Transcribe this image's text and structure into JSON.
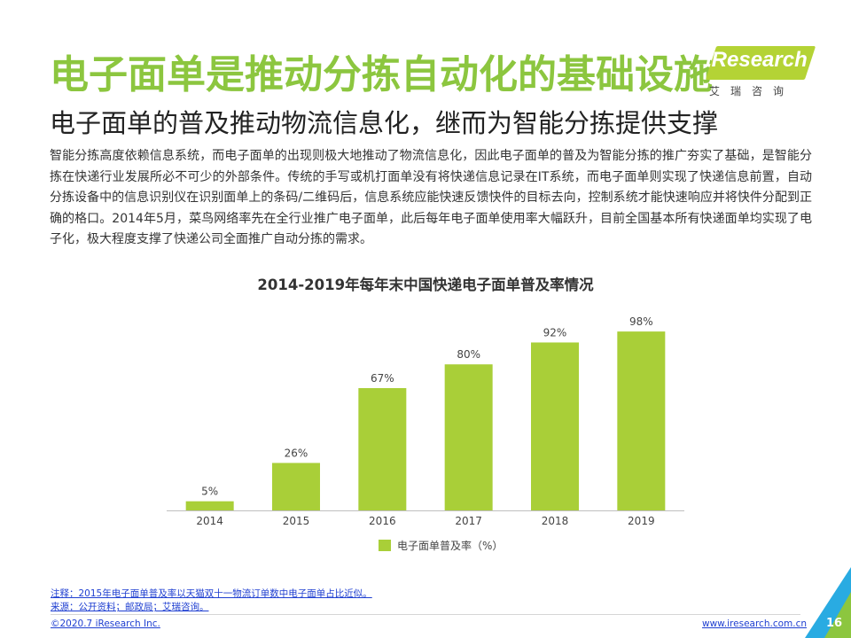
{
  "header": {
    "title": "电子面单是推动分拣自动化的基础设施",
    "subtitle": "电子面单的普及推动物流信息化，继而为智能分拣提供支撑"
  },
  "logo": {
    "brand": "iResearch",
    "subtitle": "艾瑞咨询",
    "color": "#b4d335"
  },
  "body": {
    "paragraph": "智能分拣高度依赖信息系统，而电子面单的出现则极大地推动了物流信息化，因此电子面单的普及为智能分拣的推广夯实了基础，是智能分拣在快递行业发展所必不可少的外部条件。传统的手写或机打面单没有将快递信息记录在IT系统，而电子面单则实现了快递信息前置，自动分拣设备中的信息识别仪在识别面单上的条码/二维码后，信息系统应能快速反馈快件的目标去向，控制系统才能快速响应并将快件分配到正确的格口。2014年5月，菜鸟网络率先在全行业推广电子面单，此后每年电子面单使用率大幅跃升，目前全国基本所有快递面单均实现了电子化，极大程度支撑了快递公司全面推广自动分拣的需求。"
  },
  "chart_data": {
    "type": "bar",
    "title": "2014-2019年每年末中国快递电子面单普及率情况",
    "categories": [
      "2014",
      "2015",
      "2016",
      "2017",
      "2018",
      "2019"
    ],
    "series": [
      {
        "name": "电子面单普及率（%）",
        "values": [
          5,
          26,
          67,
          80,
          92,
          98
        ],
        "labels": [
          "5%",
          "26%",
          "67%",
          "80%",
          "92%",
          "98%"
        ],
        "color": "#a9cf38"
      }
    ],
    "ylim": [
      0,
      100
    ],
    "grid": false,
    "legend": "bottom"
  },
  "footer": {
    "note": "注释：2015年电子面单普及率以天猫双十一物流订单数中电子面单占比近似。",
    "source": "来源：公开资料；邮政局；艾瑞咨询。",
    "copyright": "©2020.7 iResearch Inc.",
    "website": "www.iresearch.com.cn",
    "page": "16",
    "accent_colors": [
      "#8cc63f",
      "#29abe2"
    ]
  }
}
